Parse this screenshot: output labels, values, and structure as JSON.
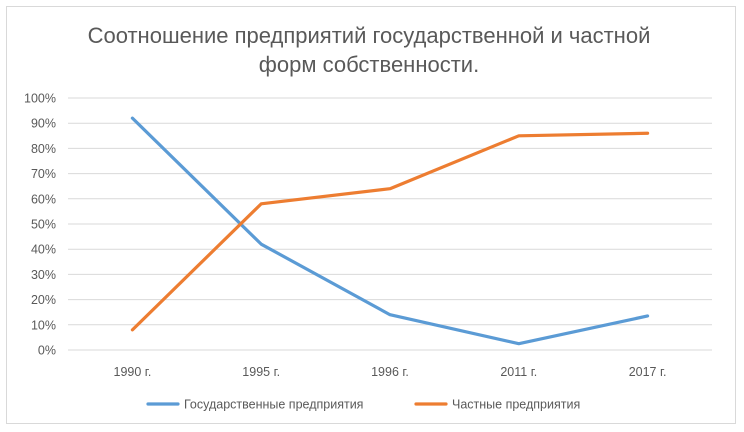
{
  "chart_data": {
    "type": "line",
    "title_lines": [
      "Соотношение предприятий государственной и частной",
      "форм собственности."
    ],
    "categories": [
      "1990 г.",
      "1995 г.",
      "1996 г.",
      "2011 г.",
      "2017 г."
    ],
    "y_ticks": [
      "0%",
      "10%",
      "20%",
      "30%",
      "40%",
      "50%",
      "60%",
      "70%",
      "80%",
      "90%",
      "100%"
    ],
    "ylim": [
      0,
      100
    ],
    "grid": true,
    "legend_position": "bottom",
    "series": [
      {
        "name": "Государственные предприятия",
        "color": "#5b9bd5",
        "values": [
          92,
          42,
          14,
          2.5,
          13.5
        ]
      },
      {
        "name": "Частные предприятия",
        "color": "#ed7d31",
        "values": [
          8,
          58,
          64,
          85,
          86
        ]
      }
    ]
  }
}
